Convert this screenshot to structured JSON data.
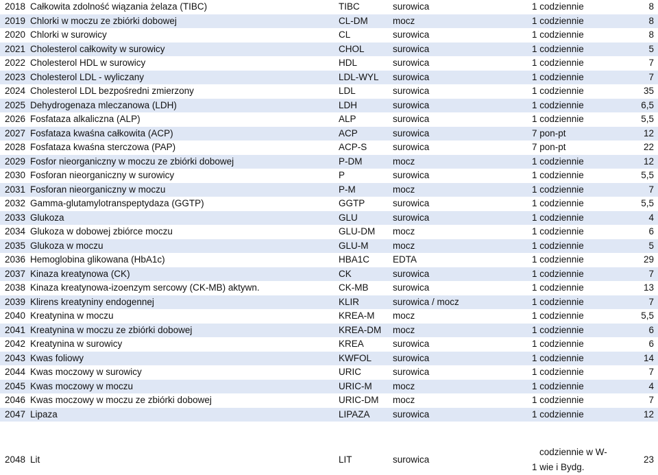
{
  "rows": [
    {
      "code": "2018",
      "name": "Całkowita zdolność wiązania żelaza (TIBC)",
      "abbr": "TIBC",
      "material": "surowica",
      "frequency": "1 codziennie",
      "days": "8"
    },
    {
      "code": "2019",
      "name": "Chlorki w moczu ze zbiórki dobowej",
      "abbr": "CL-DM",
      "material": "mocz",
      "frequency": "1 codziennie",
      "days": "8"
    },
    {
      "code": "2020",
      "name": "Chlorki w surowicy",
      "abbr": "CL",
      "material": "surowica",
      "frequency": "1 codziennie",
      "days": "8"
    },
    {
      "code": "2021",
      "name": "Cholesterol całkowity w surowicy",
      "abbr": "CHOL",
      "material": "surowica",
      "frequency": "1 codziennie",
      "days": "5"
    },
    {
      "code": "2022",
      "name": "Cholesterol HDL w surowicy",
      "abbr": "HDL",
      "material": "surowica",
      "frequency": "1 codziennie",
      "days": "7"
    },
    {
      "code": "2023",
      "name": "Cholesterol LDL - wyliczany",
      "abbr": "LDL-WYL",
      "material": "surowica",
      "frequency": "1 codziennie",
      "days": "7"
    },
    {
      "code": "2024",
      "name": "Cholesterol LDL bezpośredni zmierzony",
      "abbr": "LDL",
      "material": "surowica",
      "frequency": "1 codziennie",
      "days": "35"
    },
    {
      "code": "2025",
      "name": "Dehydrogenaza mleczanowa (LDH)",
      "abbr": "LDH",
      "material": "surowica",
      "frequency": "1 codziennie",
      "days": "6,5"
    },
    {
      "code": "2026",
      "name": "Fosfataza alkaliczna (ALP)",
      "abbr": "ALP",
      "material": "surowica",
      "frequency": "1 codziennie",
      "days": "5,5"
    },
    {
      "code": "2027",
      "name": "Fosfataza kwaśna całkowita (ACP)",
      "abbr": "ACP",
      "material": "surowica",
      "frequency": "7 pon-pt",
      "days": "12"
    },
    {
      "code": "2028",
      "name": "Fosfataza kwaśna sterczowa (PAP)",
      "abbr": "ACP-S",
      "material": "surowica",
      "frequency": "7 pon-pt",
      "days": "22"
    },
    {
      "code": "2029",
      "name": "Fosfor nieorganiczny w moczu ze zbiórki dobowej",
      "abbr": "P-DM",
      "material": "mocz",
      "frequency": "1 codziennie",
      "days": "12"
    },
    {
      "code": "2030",
      "name": "Fosforan nieorganiczny w  surowicy",
      "abbr": "P",
      "material": "surowica",
      "frequency": "1 codziennie",
      "days": "5,5"
    },
    {
      "code": "2031",
      "name": "Fosforan nieorganiczny w moczu",
      "abbr": "P-M",
      "material": "mocz",
      "frequency": "1 codziennie",
      "days": "7"
    },
    {
      "code": "2032",
      "name": "Gamma-glutamylotranspeptydaza (GGTP)",
      "abbr": "GGTP",
      "material": "surowica",
      "frequency": "1 codziennie",
      "days": "5,5"
    },
    {
      "code": "2033",
      "name": "Glukoza",
      "abbr": "GLU",
      "material": "surowica",
      "frequency": "1 codziennie",
      "days": "4"
    },
    {
      "code": "2034",
      "name": "Glukoza w dobowej zbiórce moczu",
      "abbr": "GLU-DM",
      "material": "mocz",
      "frequency": "1 codziennie",
      "days": "6"
    },
    {
      "code": "2035",
      "name": "Glukoza w moczu",
      "abbr": "GLU-M",
      "material": "mocz",
      "frequency": "1 codziennie",
      "days": "5"
    },
    {
      "code": "2036",
      "name": "Hemoglobina glikowana (HbA1c)",
      "abbr": "HBA1C",
      "material": "EDTA",
      "frequency": "1 codziennie",
      "days": "29"
    },
    {
      "code": "2037",
      "name": "Kinaza kreatynowa (CK)",
      "abbr": "CK",
      "material": "surowica",
      "frequency": "1 codziennie",
      "days": "7"
    },
    {
      "code": "2038",
      "name": "Kinaza kreatynowa-izoenzym sercowy (CK-MB) aktywn.",
      "abbr": "CK-MB",
      "material": "surowica",
      "frequency": "1 codziennie",
      "days": "13"
    },
    {
      "code": "2039",
      "name": "Klirens kreatyniny endogennej",
      "abbr": "KLIR",
      "material": "surowica / mocz",
      "frequency": "1 codziennie",
      "days": "7"
    },
    {
      "code": "2040",
      "name": "Kreatynina w moczu",
      "abbr": "KREA-M",
      "material": "mocz",
      "frequency": "1 codziennie",
      "days": "5,5"
    },
    {
      "code": "2041",
      "name": "Kreatynina w moczu ze zbiórki dobowej",
      "abbr": "KREA-DM",
      "material": "mocz",
      "frequency": "1 codziennie",
      "days": "6"
    },
    {
      "code": "2042",
      "name": "Kreatynina w surowicy",
      "abbr": "KREA",
      "material": "surowica",
      "frequency": "1 codziennie",
      "days": "6"
    },
    {
      "code": "2043",
      "name": "Kwas foliowy",
      "abbr": "KWFOL",
      "material": "surowica",
      "frequency": "1 codziennie",
      "days": "14"
    },
    {
      "code": "2044",
      "name": "Kwas moczowy  w surowicy",
      "abbr": "URIC",
      "material": "surowica",
      "frequency": "1 codziennie",
      "days": "7"
    },
    {
      "code": "2045",
      "name": "Kwas moczowy w moczu",
      "abbr": "URIC-M",
      "material": "mocz",
      "frequency": "1 codziennie",
      "days": "4"
    },
    {
      "code": "2046",
      "name": "Kwas moczowy w moczu ze zbiórki dobowej",
      "abbr": "URIC-DM",
      "material": "mocz",
      "frequency": "1 codziennie",
      "days": "7"
    },
    {
      "code": "2047",
      "name": "Lipaza",
      "abbr": "LIPAZA",
      "material": "surowica",
      "frequency": "1 codziennie",
      "days": "12"
    }
  ],
  "last_row": {
    "code": "2048",
    "name": "Lit",
    "abbr": "LIT",
    "material": "surowica",
    "frequency_line1": "codziennie w W-",
    "frequency_line2": "1 wie i Bydg.",
    "days": "23"
  }
}
